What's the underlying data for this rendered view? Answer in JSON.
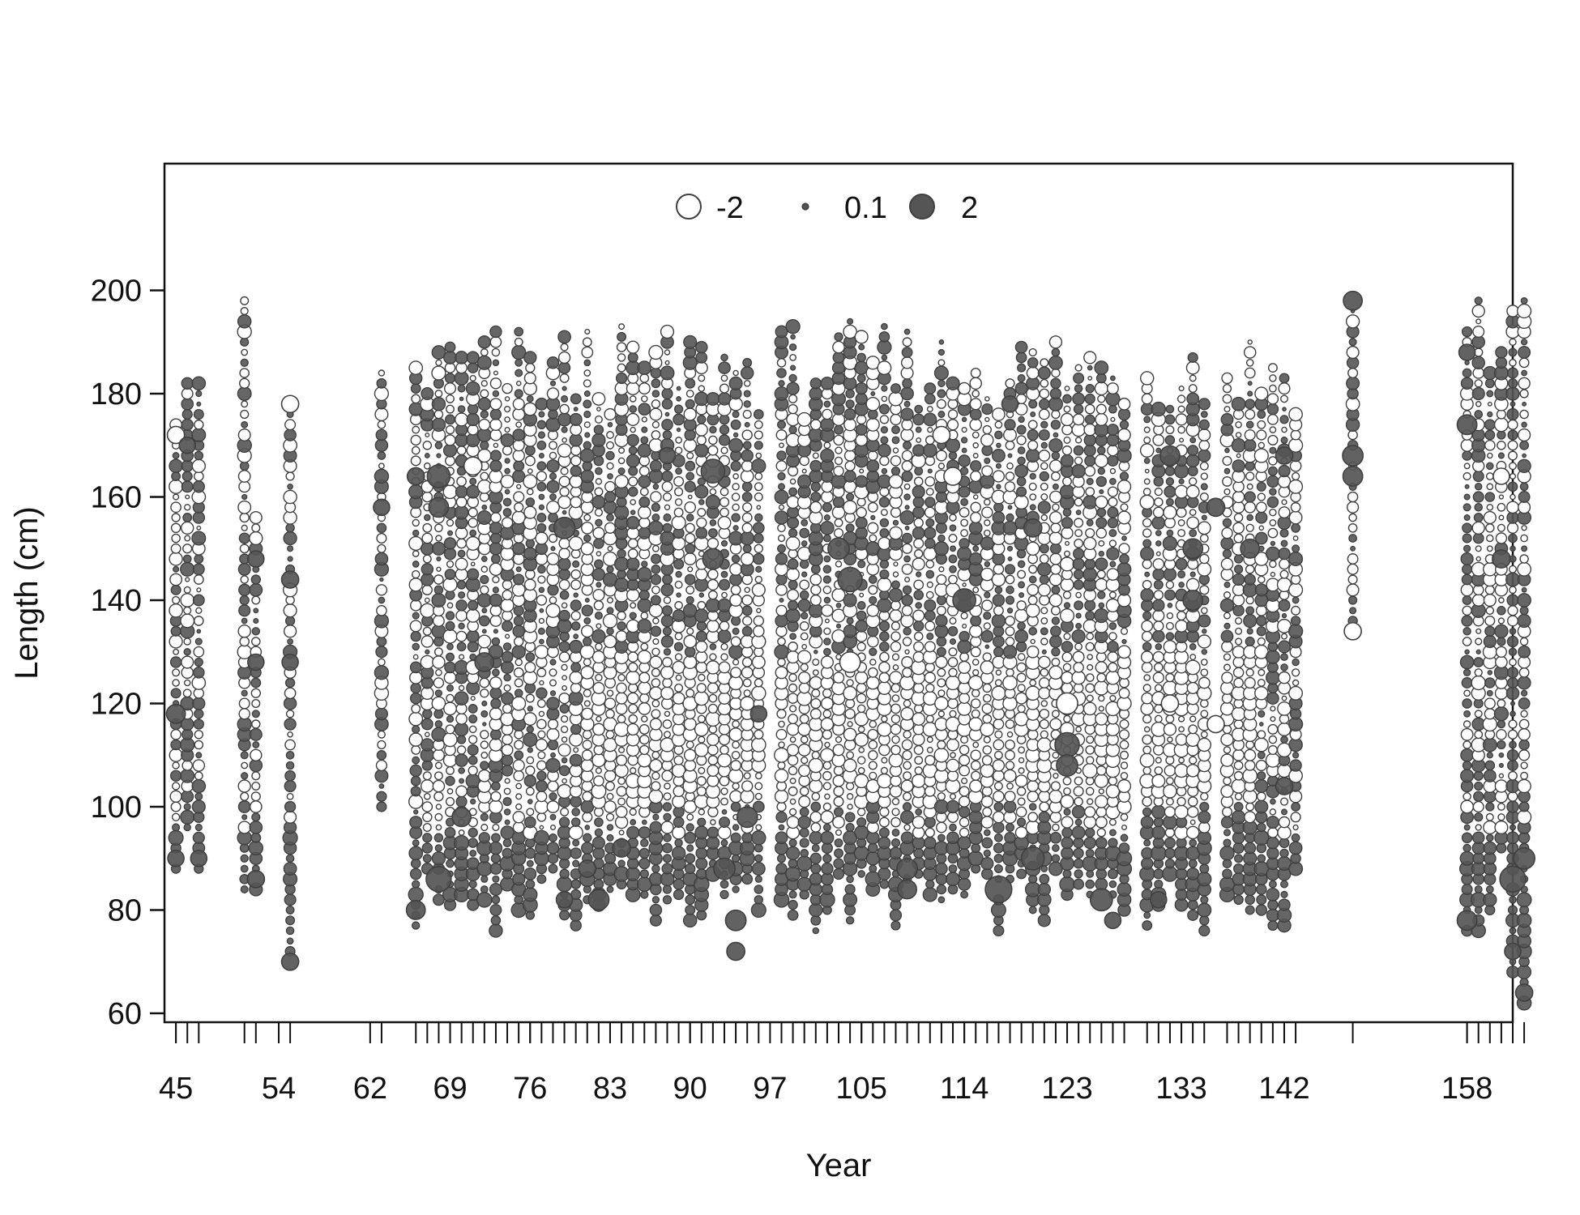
{
  "chart_data": {
    "type": "scatter",
    "subtype": "bubble-residuals",
    "xlabel": "Year",
    "ylabel": "Length (cm)",
    "ylim": [
      60,
      200
    ],
    "yticks": [
      60,
      80,
      100,
      120,
      140,
      160,
      180,
      200
    ],
    "xlim": [
      44,
      162
    ],
    "xticks": [
      45,
      54,
      62,
      69,
      76,
      83,
      90,
      97,
      105,
      114,
      123,
      133,
      142,
      158
    ],
    "grid": false,
    "legend": {
      "placement": "top-center",
      "entries": [
        {
          "label": "-2",
          "value": -2,
          "style": "open"
        },
        {
          "label": "0.1",
          "value": 0.1,
          "style": "filled"
        },
        {
          "label": "2",
          "value": 2,
          "style": "filled"
        }
      ]
    },
    "colors": {
      "positive_fill": "#555555",
      "negative_fill": "#ffffff",
      "stroke": "#404040"
    },
    "sample_years": [
      45,
      46,
      47,
      51,
      52,
      55,
      63,
      66,
      67,
      68,
      69,
      70,
      71,
      72,
      73,
      74,
      75,
      76,
      77,
      78,
      79,
      80,
      81,
      82,
      83,
      84,
      85,
      86,
      87,
      88,
      89,
      90,
      91,
      92,
      93,
      94,
      95,
      96,
      98,
      99,
      100,
      101,
      102,
      103,
      104,
      105,
      106,
      107,
      108,
      109,
      110,
      111,
      112,
      113,
      114,
      115,
      116,
      117,
      118,
      119,
      120,
      121,
      122,
      123,
      124,
      125,
      126,
      127,
      128,
      130,
      131,
      132,
      133,
      134,
      135,
      137,
      138,
      139,
      140,
      141,
      142,
      143,
      148,
      158,
      159,
      160,
      161,
      162,
      163
    ],
    "notable_residuals": [
      {
        "year": 45,
        "length": 172,
        "residual": -1.1
      },
      {
        "year": 45,
        "length": 118,
        "residual": 1.3
      },
      {
        "year": 45,
        "length": 90,
        "residual": 1.0
      },
      {
        "year": 46,
        "length": 170,
        "residual": 1.0
      },
      {
        "year": 47,
        "length": 90,
        "residual": 1.0
      },
      {
        "year": 52,
        "length": 148,
        "residual": 1.0
      },
      {
        "year": 52,
        "length": 128,
        "residual": 1.0
      },
      {
        "year": 52,
        "length": 86,
        "residual": 1.1
      },
      {
        "year": 55,
        "length": 178,
        "residual": -1.1
      },
      {
        "year": 55,
        "length": 144,
        "residual": 1.1
      },
      {
        "year": 55,
        "length": 128,
        "residual": 1.0
      },
      {
        "year": 55,
        "length": 70,
        "residual": 1.1
      },
      {
        "year": 63,
        "length": 158,
        "residual": 1.0
      },
      {
        "year": 66,
        "length": 164,
        "residual": 1.1
      },
      {
        "year": 66,
        "length": 80,
        "residual": 1.3
      },
      {
        "year": 68,
        "length": 164,
        "residual": 1.8
      },
      {
        "year": 68,
        "length": 158,
        "residual": 1.4
      },
      {
        "year": 68,
        "length": 86,
        "residual": 2.1
      },
      {
        "year": 70,
        "length": 98,
        "residual": 1.3
      },
      {
        "year": 71,
        "length": 166,
        "residual": -1.2
      },
      {
        "year": 72,
        "length": 128,
        "residual": 1.3
      },
      {
        "year": 79,
        "length": 154,
        "residual": 1.6
      },
      {
        "year": 79,
        "length": 82,
        "residual": 1.0
      },
      {
        "year": 81,
        "length": 88,
        "residual": 1.1
      },
      {
        "year": 82,
        "length": 82,
        "residual": 1.5
      },
      {
        "year": 84,
        "length": 92,
        "residual": 1.2
      },
      {
        "year": 88,
        "length": 168,
        "residual": 1.0
      },
      {
        "year": 92,
        "length": 165,
        "residual": 1.9
      },
      {
        "year": 92,
        "length": 148,
        "residual": 1.5
      },
      {
        "year": 93,
        "length": 88,
        "residual": 1.6
      },
      {
        "year": 94,
        "length": 78,
        "residual": 1.5
      },
      {
        "year": 94,
        "length": 72,
        "residual": 1.2
      },
      {
        "year": 95,
        "length": 98,
        "residual": 1.5
      },
      {
        "year": 96,
        "length": 118,
        "residual": 1.0
      },
      {
        "year": 103,
        "length": 150,
        "residual": 1.6
      },
      {
        "year": 104,
        "length": 144,
        "residual": 2.0
      },
      {
        "year": 104,
        "length": 128,
        "residual": -1.5
      },
      {
        "year": 109,
        "length": 88,
        "residual": 1.5
      },
      {
        "year": 109,
        "length": 84,
        "residual": 1.3
      },
      {
        "year": 112,
        "length": 172,
        "residual": -1.1
      },
      {
        "year": 113,
        "length": 164,
        "residual": -1.2
      },
      {
        "year": 114,
        "length": 140,
        "residual": 1.8
      },
      {
        "year": 117,
        "length": 84,
        "residual": 2.3
      },
      {
        "year": 118,
        "length": 178,
        "residual": 1.0
      },
      {
        "year": 120,
        "length": 90,
        "residual": 1.8
      },
      {
        "year": 120,
        "length": 154,
        "residual": 1.2
      },
      {
        "year": 123,
        "length": 120,
        "residual": -1.6
      },
      {
        "year": 123,
        "length": 112,
        "residual": 2.0
      },
      {
        "year": 123,
        "length": 108,
        "residual": 1.6
      },
      {
        "year": 126,
        "length": 82,
        "residual": 1.7
      },
      {
        "year": 127,
        "length": 78,
        "residual": 1.0
      },
      {
        "year": 131,
        "length": 82,
        "residual": 1.0
      },
      {
        "year": 132,
        "length": 168,
        "residual": 1.4
      },
      {
        "year": 132,
        "length": 120,
        "residual": -1.1
      },
      {
        "year": 134,
        "length": 150,
        "residual": 1.4
      },
      {
        "year": 134,
        "length": 140,
        "residual": 1.4
      },
      {
        "year": 136,
        "length": 158,
        "residual": 1.2
      },
      {
        "year": 136,
        "length": 116,
        "residual": -1.1
      },
      {
        "year": 139,
        "length": 150,
        "residual": 1.3
      },
      {
        "year": 142,
        "length": 168,
        "residual": 1.1
      },
      {
        "year": 142,
        "length": 104,
        "residual": 1.1
      },
      {
        "year": 148,
        "length": 198,
        "residual": 1.3
      },
      {
        "year": 148,
        "length": 168,
        "residual": 1.5
      },
      {
        "year": 148,
        "length": 164,
        "residual": 1.4
      },
      {
        "year": 148,
        "length": 134,
        "residual": -1.1
      },
      {
        "year": 158,
        "length": 188,
        "residual": 1.0
      },
      {
        "year": 158,
        "length": 174,
        "residual": 1.4
      },
      {
        "year": 158,
        "length": 78,
        "residual": 1.4
      },
      {
        "year": 161,
        "length": 164,
        "residual": -1.0
      },
      {
        "year": 161,
        "length": 148,
        "residual": 1.2
      },
      {
        "year": 162,
        "length": 86,
        "residual": 2.2
      },
      {
        "year": 162,
        "length": 72,
        "residual": 1.0
      },
      {
        "year": 163,
        "length": 90,
        "residual": 1.6
      },
      {
        "year": 163,
        "length": 64,
        "residual": 1.1
      }
    ]
  }
}
